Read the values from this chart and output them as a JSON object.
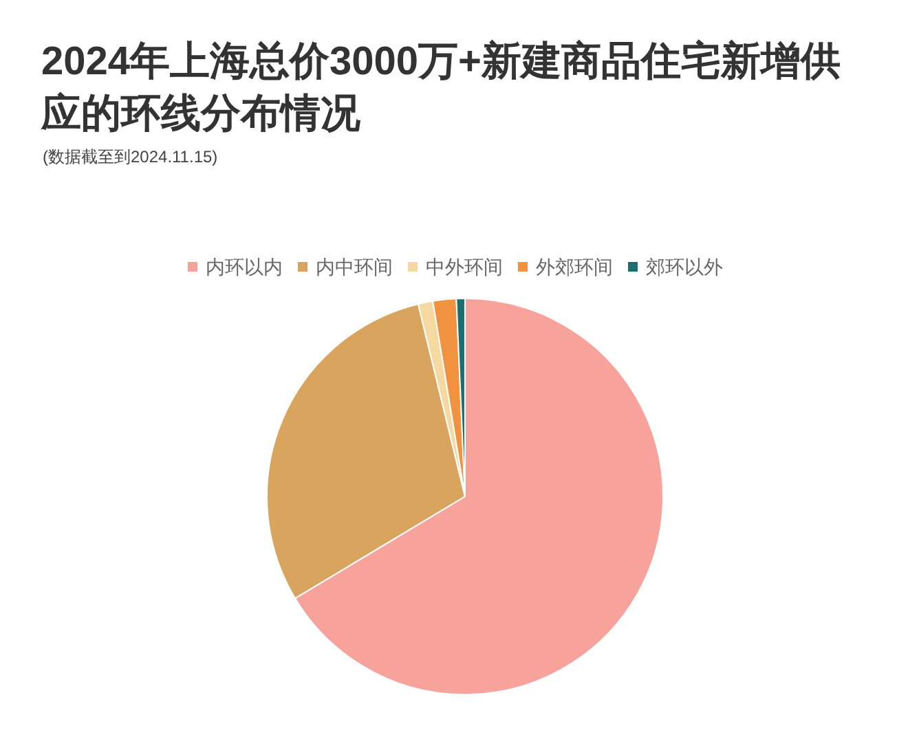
{
  "chart_data": {
    "type": "pie",
    "title": "2024年上海总价3000万+新建商品住宅新增供应的环线分布情况",
    "subtitle": "(数据截至到2024.11.15)",
    "categories": [
      "内环以内",
      "内中环间",
      "中外环间",
      "外郊环间",
      "郊环以外"
    ],
    "values": [
      66.4,
      29.8,
      1.2,
      1.9,
      0.7
    ],
    "colors": [
      "#f7a29b",
      "#d9a55e",
      "#f6d9a1",
      "#f0923f",
      "#1d6e73"
    ],
    "legend": "top"
  }
}
